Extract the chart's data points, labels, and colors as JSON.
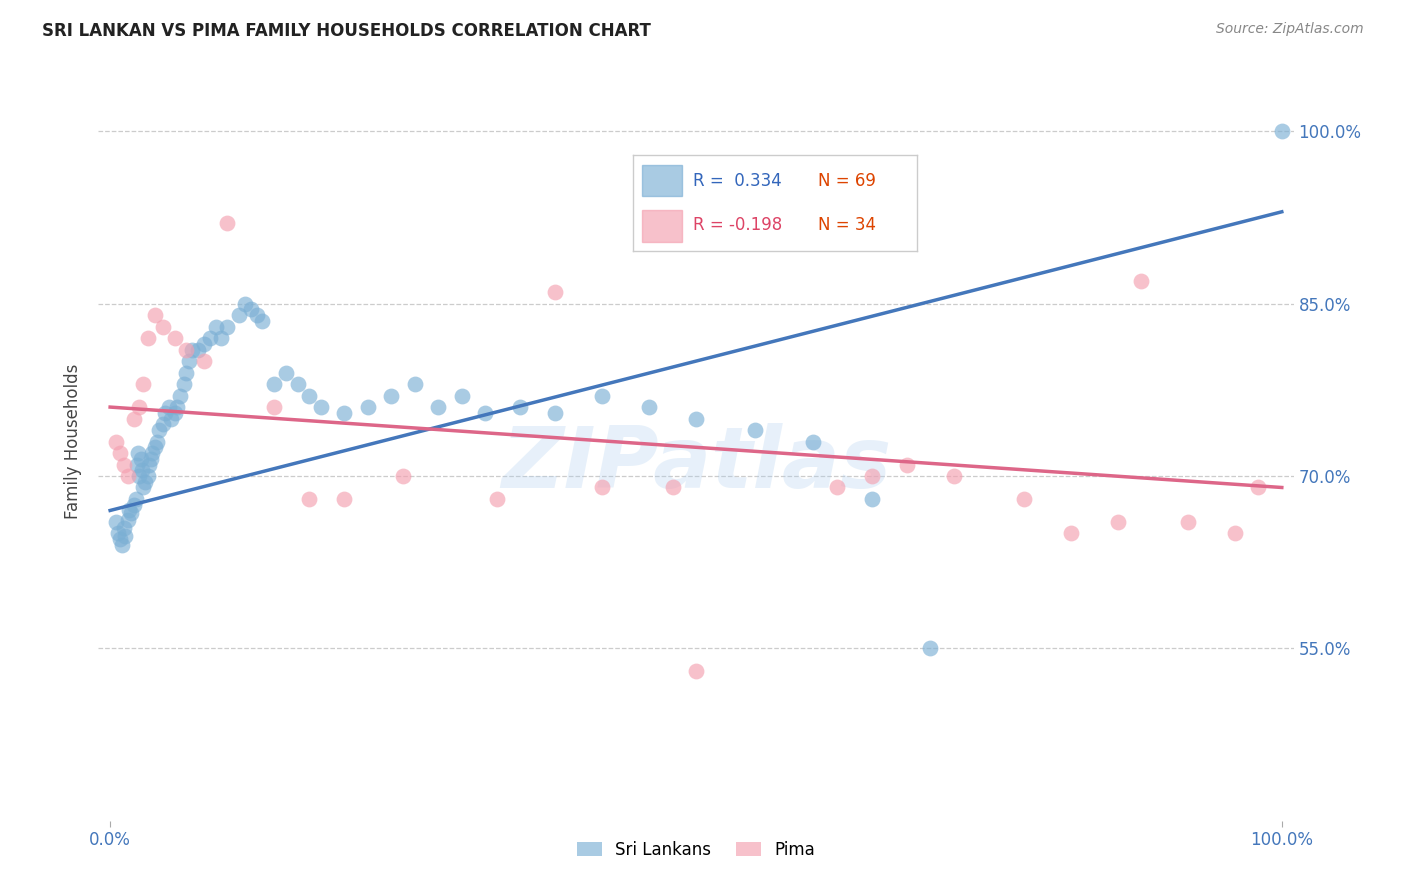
{
  "title": "SRI LANKAN VS PIMA FAMILY HOUSEHOLDS CORRELATION CHART",
  "source": "Source: ZipAtlas.com",
  "ylabel": "Family Households",
  "blue_color": "#7bafd4",
  "pink_color": "#f4a0b0",
  "blue_line_color": "#4477bb",
  "pink_line_color": "#dd6688",
  "watermark": "ZIPatlas",
  "legend_r1": "R =  0.334",
  "legend_n1": "N = 69",
  "legend_r2": "R = -0.198",
  "legend_n2": "N = 34",
  "sri_x": [
    0.005,
    0.007,
    0.008,
    0.01,
    0.012,
    0.013,
    0.015,
    0.016,
    0.018,
    0.02,
    0.022,
    0.023,
    0.024,
    0.025,
    0.026,
    0.027,
    0.028,
    0.03,
    0.032,
    0.033,
    0.035,
    0.036,
    0.038,
    0.04,
    0.042,
    0.045,
    0.047,
    0.05,
    0.052,
    0.055,
    0.057,
    0.06,
    0.063,
    0.065,
    0.067,
    0.07,
    0.075,
    0.08,
    0.085,
    0.09,
    0.095,
    0.1,
    0.11,
    0.115,
    0.12,
    0.125,
    0.13,
    0.14,
    0.15,
    0.16,
    0.17,
    0.18,
    0.2,
    0.22,
    0.24,
    0.26,
    0.28,
    0.3,
    0.32,
    0.35,
    0.38,
    0.42,
    0.46,
    0.5,
    0.55,
    0.6,
    0.65,
    0.7,
    1.0
  ],
  "sri_y": [
    0.66,
    0.65,
    0.645,
    0.64,
    0.655,
    0.648,
    0.662,
    0.67,
    0.668,
    0.675,
    0.68,
    0.71,
    0.72,
    0.7,
    0.715,
    0.705,
    0.69,
    0.695,
    0.7,
    0.71,
    0.715,
    0.72,
    0.725,
    0.73,
    0.74,
    0.745,
    0.755,
    0.76,
    0.75,
    0.755,
    0.76,
    0.77,
    0.78,
    0.79,
    0.8,
    0.81,
    0.81,
    0.815,
    0.82,
    0.83,
    0.82,
    0.83,
    0.84,
    0.85,
    0.845,
    0.84,
    0.835,
    0.78,
    0.79,
    0.78,
    0.77,
    0.76,
    0.755,
    0.76,
    0.77,
    0.78,
    0.76,
    0.77,
    0.755,
    0.76,
    0.755,
    0.77,
    0.76,
    0.75,
    0.74,
    0.73,
    0.68,
    0.55,
    1.0
  ],
  "pima_x": [
    0.005,
    0.008,
    0.012,
    0.015,
    0.02,
    0.025,
    0.028,
    0.032,
    0.038,
    0.045,
    0.055,
    0.065,
    0.08,
    0.1,
    0.14,
    0.17,
    0.2,
    0.25,
    0.33,
    0.38,
    0.42,
    0.48,
    0.5,
    0.62,
    0.65,
    0.68,
    0.72,
    0.78,
    0.82,
    0.86,
    0.88,
    0.92,
    0.96,
    0.98
  ],
  "pima_y": [
    0.73,
    0.72,
    0.71,
    0.7,
    0.75,
    0.76,
    0.78,
    0.82,
    0.84,
    0.83,
    0.82,
    0.81,
    0.8,
    0.92,
    0.76,
    0.68,
    0.68,
    0.7,
    0.68,
    0.86,
    0.69,
    0.69,
    0.53,
    0.69,
    0.7,
    0.71,
    0.7,
    0.68,
    0.65,
    0.66,
    0.87,
    0.66,
    0.65,
    0.69
  ],
  "blue_trendline": [
    0.67,
    0.93
  ],
  "pink_trendline": [
    0.76,
    0.69
  ],
  "ytick_vals": [
    0.55,
    0.7,
    0.85,
    1.0
  ],
  "ytick_labels": [
    "55.0%",
    "70.0%",
    "85.0%",
    "100.0%"
  ],
  "ylim": [
    0.4,
    1.06
  ],
  "xlim": [
    0.0,
    1.0
  ]
}
